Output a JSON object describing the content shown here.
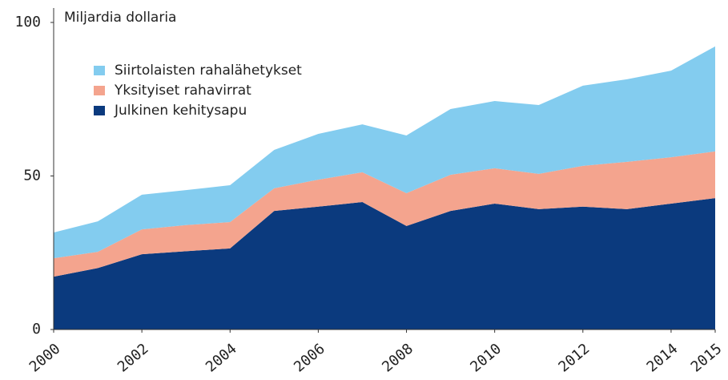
{
  "chart_data": {
    "type": "stacked_area",
    "y_label": "Miljardia dollaria",
    "x": [
      2000,
      2001,
      2002,
      2003,
      2004,
      2005,
      2006,
      2007,
      2008,
      2009,
      2010,
      2011,
      2012,
      2013,
      2014,
      2015
    ],
    "series": [
      {
        "name": "Julkinen kehitysapu",
        "color": "#0b3a7e",
        "values": [
          17.2,
          20,
          24.5,
          25.5,
          26.4,
          38.6,
          40,
          41.5,
          33.7,
          38.6,
          41,
          39.2,
          40,
          39.2,
          41,
          42.8
        ]
      },
      {
        "name": "Yksityiset rahavirrat",
        "color": "#f4a48e",
        "values": [
          6,
          5.3,
          8.1,
          8.5,
          8.6,
          7.4,
          8.8,
          9.7,
          10.7,
          11.8,
          11.5,
          11.5,
          13.3,
          15.4,
          15.1,
          15.2
        ]
      },
      {
        "name": "Siirtolaisten rahalähetykset",
        "color": "#83ccef",
        "values": [
          8.4,
          9.9,
          11.3,
          11.4,
          12,
          12.5,
          14.9,
          15.6,
          18.8,
          21.4,
          21.9,
          22.4,
          26.1,
          26.9,
          28.2,
          34.2
        ]
      }
    ],
    "xlim": [
      2000,
      2015
    ],
    "xticks": [
      2000,
      2002,
      2004,
      2006,
      2008,
      2010,
      2012,
      2014,
      2015
    ],
    "ylim": [
      0,
      100
    ],
    "yticks": [
      0,
      50,
      100
    ],
    "legend": "upper left"
  }
}
